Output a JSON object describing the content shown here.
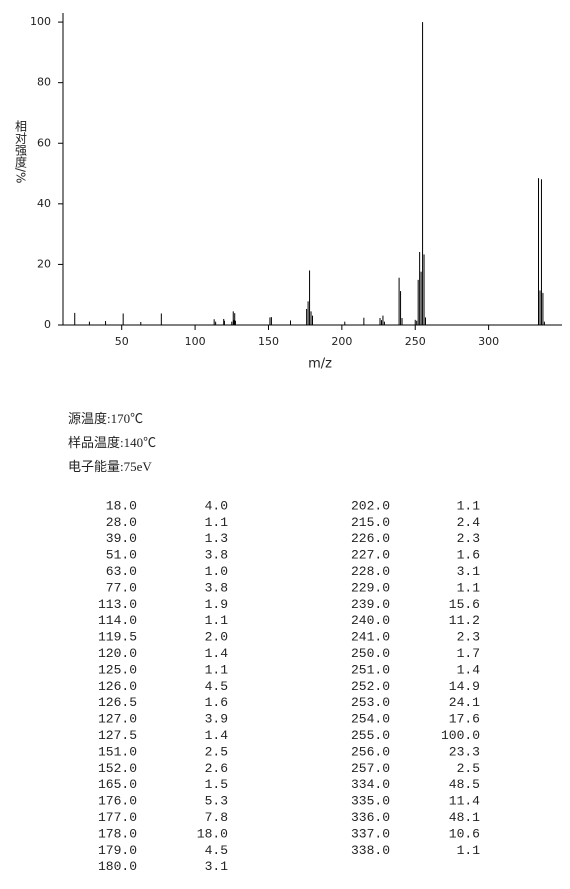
{
  "chart_data": {
    "type": "bar",
    "xlabel": "m/z",
    "ylabel": "相对强度/%",
    "color": "#000000",
    "x": [
      18,
      28,
      39,
      51,
      63,
      77,
      113,
      114,
      119.5,
      120,
      125,
      126,
      126.5,
      127,
      127.5,
      151,
      152,
      165,
      176,
      177,
      178,
      179,
      180,
      202,
      215,
      226,
      227,
      228,
      229,
      239,
      240,
      241,
      250,
      251,
      252,
      253,
      254,
      255,
      256,
      257,
      334,
      335,
      336,
      337,
      338
    ],
    "values": [
      4.0,
      1.1,
      1.3,
      3.8,
      1.0,
      3.8,
      1.9,
      1.1,
      2.0,
      1.4,
      1.1,
      4.5,
      1.6,
      3.9,
      1.4,
      2.5,
      2.6,
      1.5,
      5.3,
      7.8,
      18.0,
      4.5,
      3.1,
      1.1,
      2.4,
      2.3,
      1.6,
      3.1,
      1.1,
      15.6,
      11.2,
      2.3,
      1.7,
      1.4,
      14.9,
      24.1,
      17.6,
      100.0,
      23.3,
      2.5,
      48.5,
      11.4,
      48.1,
      10.6,
      1.1
    ],
    "xlim": [
      10,
      350
    ],
    "xticks": [
      50,
      100,
      150,
      200,
      250,
      300
    ],
    "ylim": [
      0,
      103
    ],
    "yticks": [
      0,
      20,
      40,
      60,
      80,
      100
    ]
  },
  "info": [
    "源温度:170℃",
    "样品温度:140℃",
    "电子能量:75eV"
  ],
  "table": {
    "left": [
      [
        "18.0",
        "4.0"
      ],
      [
        "28.0",
        "1.1"
      ],
      [
        "39.0",
        "1.3"
      ],
      [
        "51.0",
        "3.8"
      ],
      [
        "63.0",
        "1.0"
      ],
      [
        "77.0",
        "3.8"
      ],
      [
        "113.0",
        "1.9"
      ],
      [
        "114.0",
        "1.1"
      ],
      [
        "119.5",
        "2.0"
      ],
      [
        "120.0",
        "1.4"
      ],
      [
        "125.0",
        "1.1"
      ],
      [
        "126.0",
        "4.5"
      ],
      [
        "126.5",
        "1.6"
      ],
      [
        "127.0",
        "3.9"
      ],
      [
        "127.5",
        "1.4"
      ],
      [
        "151.0",
        "2.5"
      ],
      [
        "152.0",
        "2.6"
      ],
      [
        "165.0",
        "1.5"
      ],
      [
        "176.0",
        "5.3"
      ],
      [
        "177.0",
        "7.8"
      ],
      [
        "178.0",
        "18.0"
      ],
      [
        "179.0",
        "4.5"
      ],
      [
        "180.0",
        "3.1"
      ]
    ],
    "right": [
      [
        "202.0",
        "1.1"
      ],
      [
        "215.0",
        "2.4"
      ],
      [
        "226.0",
        "2.3"
      ],
      [
        "227.0",
        "1.6"
      ],
      [
        "228.0",
        "3.1"
      ],
      [
        "229.0",
        "1.1"
      ],
      [
        "239.0",
        "15.6"
      ],
      [
        "240.0",
        "11.2"
      ],
      [
        "241.0",
        "2.3"
      ],
      [
        "250.0",
        "1.7"
      ],
      [
        "251.0",
        "1.4"
      ],
      [
        "252.0",
        "14.9"
      ],
      [
        "253.0",
        "24.1"
      ],
      [
        "254.0",
        "17.6"
      ],
      [
        "255.0",
        "100.0"
      ],
      [
        "256.0",
        "23.3"
      ],
      [
        "257.0",
        "2.5"
      ],
      [
        "334.0",
        "48.5"
      ],
      [
        "335.0",
        "11.4"
      ],
      [
        "336.0",
        "48.1"
      ],
      [
        "337.0",
        "10.6"
      ],
      [
        "338.0",
        "1.1"
      ]
    ]
  }
}
